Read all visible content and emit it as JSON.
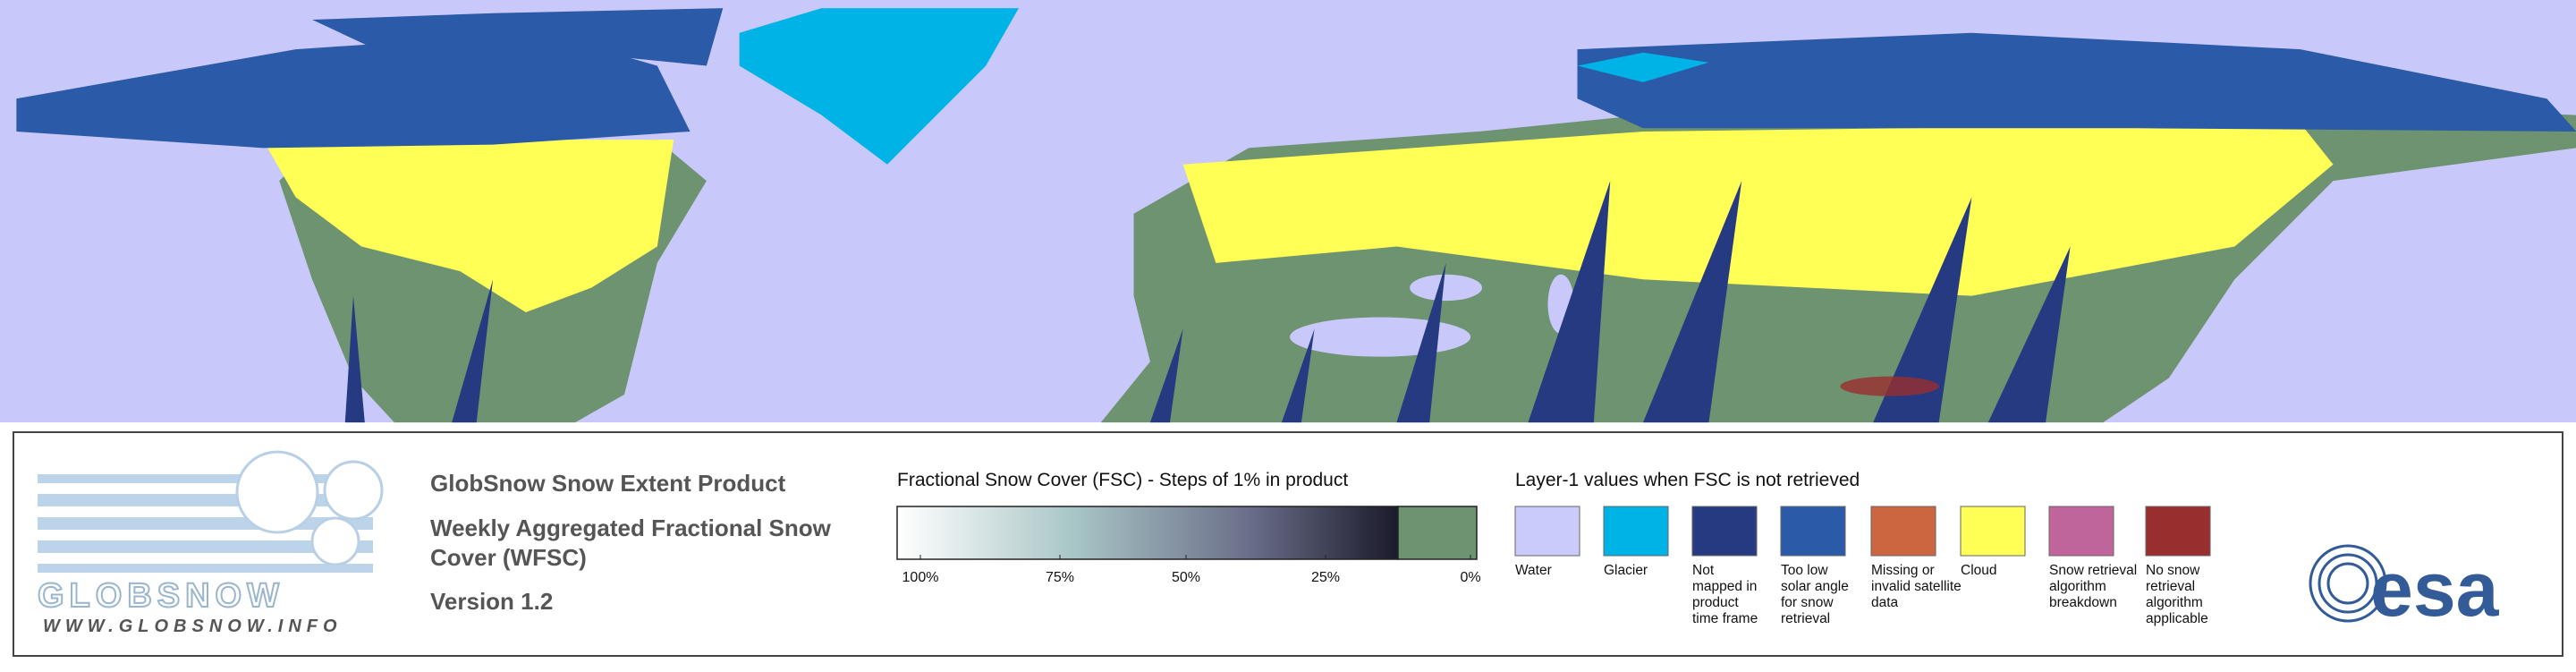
{
  "logo": {
    "name": "GLOBSNOW",
    "url": "WWW.GLOBSNOW.INFO"
  },
  "product": {
    "title": "GlobSnow Snow Extent Product",
    "subtitle": [
      "Weekly Aggregated Fractional Snow",
      "Cover (WFSC)"
    ],
    "version": "Version 1.2"
  },
  "fsc_scale": {
    "title": "Fractional Snow Cover (FSC) - Steps of 1% in product",
    "labels": [
      "100%",
      "75%",
      "50%",
      "25%",
      "0%"
    ]
  },
  "layer1": {
    "title": "Layer-1 values when FSC is not retrieved",
    "items": [
      {
        "label": [
          "Water"
        ],
        "color": "#cbcbfb"
      },
      {
        "label": [
          "Glacier"
        ],
        "color": "#00b3e6"
      },
      {
        "label": [
          "Not",
          "mapped in",
          "product",
          "time frame"
        ],
        "color": "#253a80"
      },
      {
        "label": [
          "Too low",
          "solar angle",
          "for snow",
          "retrieval"
        ],
        "color": "#2a5aa8"
      },
      {
        "label": [
          "Missing or",
          "invalid satellite",
          "data"
        ],
        "color": "#cc6640"
      },
      {
        "label": [
          "Cloud"
        ],
        "color": "#ffff55"
      },
      {
        "label": [
          "Snow retrieval",
          "algorithm",
          "breakdown"
        ],
        "color": "#c0649c"
      },
      {
        "label": [
          "No snow",
          "retrieval",
          "algorithm",
          "applicable"
        ],
        "color": "#992e2e"
      }
    ]
  },
  "agency": "esa"
}
